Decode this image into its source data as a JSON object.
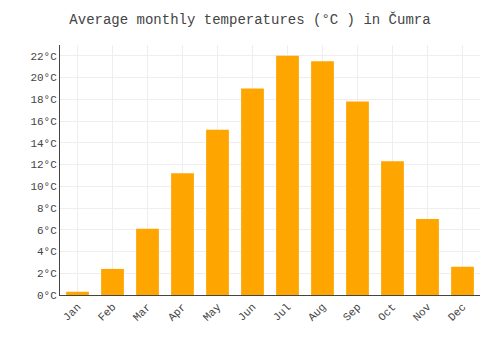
{
  "chart_data": {
    "type": "bar",
    "title": "Average monthly temperatures (°C ) in Čumra",
    "categories": [
      "Jan",
      "Feb",
      "Mar",
      "Apr",
      "May",
      "Jun",
      "Jul",
      "Aug",
      "Sep",
      "Oct",
      "Nov",
      "Dec"
    ],
    "values": [
      0.3,
      2.4,
      6.1,
      11.2,
      15.2,
      19.0,
      22.0,
      21.5,
      17.8,
      12.3,
      7.0,
      2.6
    ],
    "color": "#FFA500",
    "ylim": [
      0,
      23
    ],
    "yticks": [
      {
        "value": 0,
        "label": "0°C"
      },
      {
        "value": 2,
        "label": "2°C"
      },
      {
        "value": 4,
        "label": "4°C"
      },
      {
        "value": 6,
        "label": "6°C"
      },
      {
        "value": 8,
        "label": "8°C"
      },
      {
        "value": 10,
        "label": "10°C"
      },
      {
        "value": 12,
        "label": "12°C"
      },
      {
        "value": 14,
        "label": "14°C"
      },
      {
        "value": 16,
        "label": "16°C"
      },
      {
        "value": 18,
        "label": "18°C"
      },
      {
        "value": 20,
        "label": "20°C"
      },
      {
        "value": 22,
        "label": "22°C"
      }
    ],
    "grid": true
  }
}
